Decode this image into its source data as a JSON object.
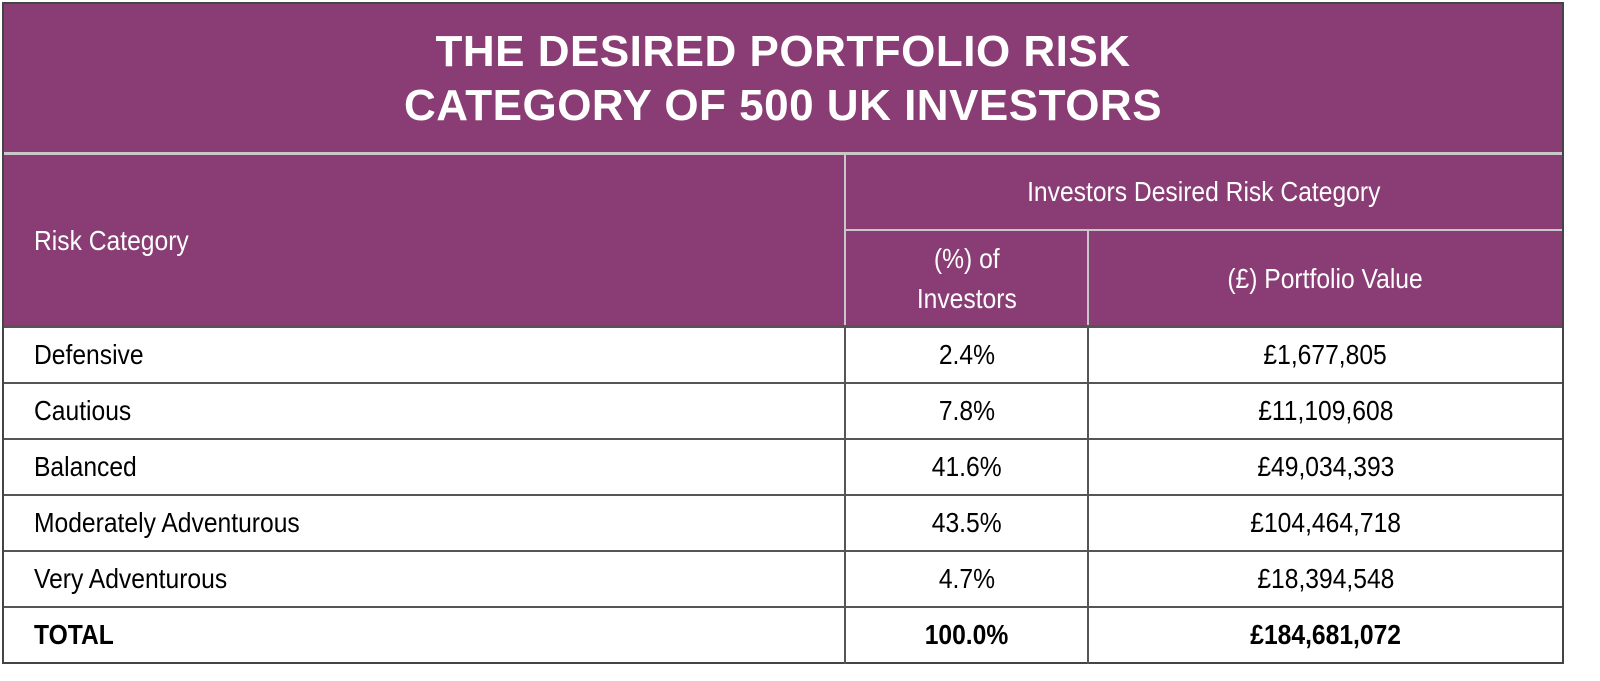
{
  "title": {
    "line1": "THE DESIRED PORTFOLIO RISK",
    "line2": "CATEGORY OF 500 UK INVESTORS"
  },
  "colors": {
    "header_bg": "#8a3d74",
    "header_text": "#ffffff",
    "border": "#555555"
  },
  "chart_data": {
    "type": "table",
    "title": "THE DESIRED PORTFOLIO RISK CATEGORY OF 500 UK INVESTORS",
    "header": {
      "row_label": "Risk Category",
      "group": "Investors Desired Risk Category",
      "col_pct_line1": "(%) of",
      "col_pct_line2": "Investors",
      "col_value": "(£) Portfolio Value"
    },
    "rows": [
      {
        "category": "Defensive",
        "pct": "2.4%",
        "value": "£1,677,805"
      },
      {
        "category": "Cautious",
        "pct": "7.8%",
        "value": "£11,109,608"
      },
      {
        "category": "Balanced",
        "pct": "41.6%",
        "value": "£49,034,393"
      },
      {
        "category": "Moderately Adventurous",
        "pct": "43.5%",
        "value": "£104,464,718"
      },
      {
        "category": "Very Adventurous",
        "pct": "4.7%",
        "value": "£18,394,548"
      }
    ],
    "total": {
      "category": "TOTAL",
      "pct": "100.0%",
      "value": "£184,681,072"
    }
  }
}
